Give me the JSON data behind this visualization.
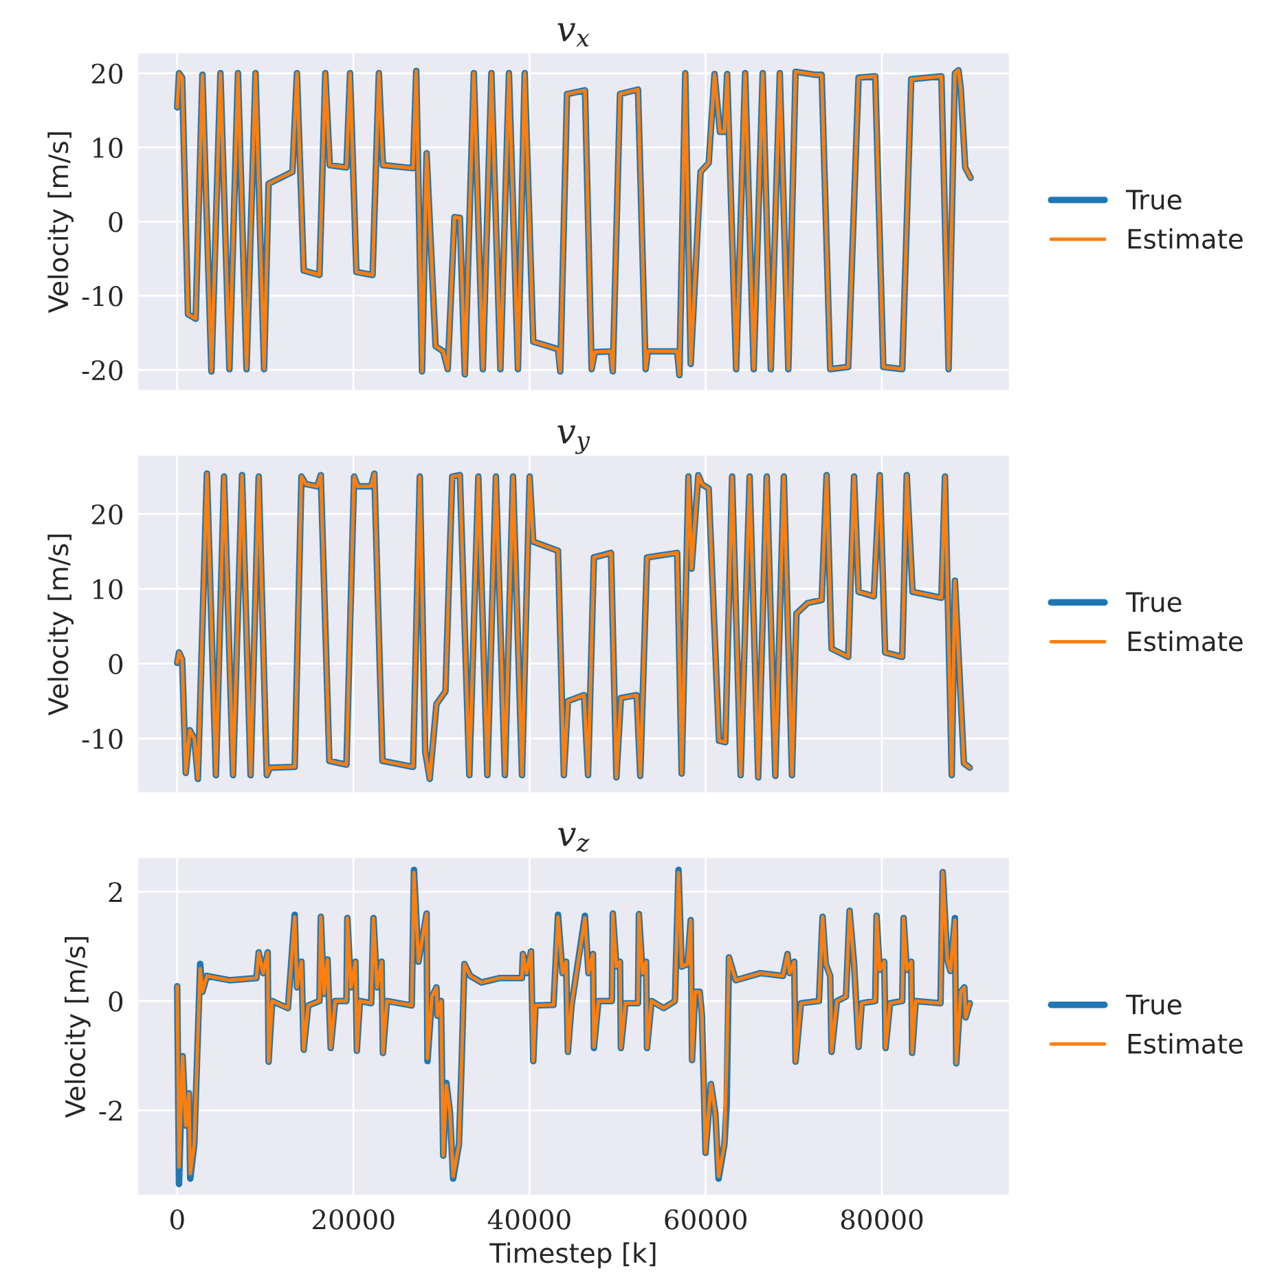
{
  "chart_data": [
    {
      "type": "line",
      "title": "v$_{x}$",
      "ylabel": "Velocity [m/s]",
      "xlim": [
        -4500,
        94500
      ],
      "xticks": [
        0,
        20000,
        40000,
        60000,
        80000
      ],
      "ylim": [
        -22.8,
        22.8
      ],
      "yticks": [
        -20,
        -10,
        0,
        10,
        20
      ],
      "tick_labels": "y",
      "grid": true,
      "legend": "right",
      "x": [
        0,
        206,
        563,
        1228,
        2097,
        2863,
        3885,
        4907,
        5929,
        6900,
        7871,
        8893,
        9864,
        10375,
        13083,
        13594,
        14361,
        16149,
        16813,
        17324,
        19215,
        19624,
        20340,
        22180,
        22894,
        23354,
        26778,
        27136,
        27800,
        28311,
        29333,
        30202,
        30713,
        31479,
        32092,
        32654,
        33676,
        34698,
        35669,
        36691,
        37662,
        38684,
        39451,
        40422,
        43232,
        43488,
        44254,
        46298,
        47052,
        47409,
        49249,
        49453,
        50271,
        52315,
        53184,
        53439,
        56761,
        57016,
        57680,
        58294,
        59418,
        60338,
        61002,
        61615,
        62126,
        62433,
        63455,
        64477,
        65448,
        66470,
        67389,
        68411,
        69382,
        70200,
        72346,
        73164,
        74135,
        76179,
        77354,
        79245,
        80164,
        82311,
        83333,
        86756,
        87574,
        88289,
        88698,
        88954,
        89464,
        90078
      ],
      "series": [
        {
          "name": "True",
          "color": "#1f77b4",
          "values": [
            15.4,
            20.0,
            19.4,
            -12.5,
            -13.1,
            19.8,
            -20.2,
            20.0,
            -19.9,
            20.0,
            -19.9,
            20.0,
            -19.9,
            5.1,
            6.7,
            20.0,
            -6.6,
            -7.2,
            20.0,
            7.6,
            7.3,
            20.0,
            -6.8,
            -7.2,
            20.0,
            7.6,
            7.2,
            20.3,
            -20.2,
            9.2,
            -16.8,
            -17.5,
            -19.9,
            0.6,
            0.5,
            -20.6,
            20.0,
            -19.9,
            20.0,
            -19.9,
            20.0,
            -19.9,
            20.0,
            -16.2,
            -17.2,
            -20.2,
            17.2,
            17.7,
            -19.9,
            -17.6,
            -17.5,
            -20.2,
            17.2,
            17.8,
            -19.9,
            -17.5,
            -17.5,
            -20.7,
            20.0,
            -19.2,
            6.7,
            7.9,
            19.9,
            12.1,
            12.1,
            19.9,
            -19.9,
            20.0,
            -19.9,
            20.0,
            -19.9,
            20.0,
            -19.9,
            20.2,
            19.8,
            19.8,
            -19.9,
            -19.6,
            19.4,
            19.6,
            -19.6,
            -19.9,
            19.2,
            19.6,
            -19.9,
            20.0,
            20.4,
            18.0,
            7.3,
            5.9
          ]
        },
        {
          "name": "Estimate",
          "color": "#ff7f0e",
          "values": [
            15.4,
            20.0,
            19.4,
            -12.5,
            -13.1,
            19.8,
            -20.2,
            20.0,
            -19.9,
            20.0,
            -19.9,
            20.0,
            -19.9,
            5.1,
            6.7,
            20.0,
            -6.6,
            -7.2,
            20.0,
            7.6,
            7.3,
            20.0,
            -6.8,
            -7.2,
            20.0,
            7.6,
            7.2,
            20.3,
            -20.2,
            9.2,
            -16.8,
            -17.5,
            -19.9,
            0.6,
            0.5,
            -20.6,
            20.0,
            -19.9,
            20.0,
            -19.9,
            20.0,
            -19.9,
            20.0,
            -16.2,
            -17.2,
            -20.2,
            17.2,
            17.7,
            -19.9,
            -17.6,
            -17.5,
            -20.2,
            17.2,
            17.8,
            -19.9,
            -17.5,
            -17.5,
            -20.7,
            20.0,
            -19.2,
            6.7,
            7.9,
            19.9,
            12.1,
            12.1,
            19.9,
            -19.9,
            20.0,
            -19.9,
            20.0,
            -19.9,
            20.0,
            -19.9,
            20.2,
            19.8,
            19.8,
            -19.9,
            -19.6,
            19.4,
            19.6,
            -19.6,
            -19.9,
            19.2,
            19.6,
            -19.9,
            20.0,
            20.4,
            18.0,
            7.3,
            5.9
          ]
        }
      ]
    },
    {
      "type": "line",
      "title": "v$_{y}$",
      "ylabel": "Velocity [m/s]",
      "xlim": [
        -4500,
        94500
      ],
      "xticks": [
        0,
        20000,
        40000,
        60000,
        80000
      ],
      "ylim": [
        -17.3,
        27.9
      ],
      "yticks": [
        -10,
        0,
        10,
        20
      ],
      "tick_labels": "y",
      "grid": true,
      "legend": "right",
      "x": [
        0,
        206,
        563,
        972,
        1432,
        1943,
        2352,
        3374,
        4396,
        5316,
        6338,
        7360,
        8331,
        9251,
        10170,
        10528,
        13339,
        14105,
        14616,
        15894,
        16302,
        17273,
        19215,
        20084,
        20493,
        22026,
        22383,
        23303,
        26778,
        27544,
        28158,
        28669,
        29435,
        30457,
        31224,
        32092,
        33165,
        34187,
        35209,
        36180,
        37202,
        38122,
        39144,
        40013,
        40422,
        43232,
        43897,
        44357,
        46183,
        46643,
        47307,
        49249,
        49862,
        50373,
        52162,
        52570,
        53337,
        56761,
        57272,
        58038,
        58396,
        59162,
        59571,
        60338,
        61513,
        62228,
        62995,
        63966,
        64988,
        65959,
        66930,
        67900,
        68871,
        69791,
        70302,
        71580,
        73164,
        73726,
        74288,
        76179,
        76843,
        77354,
        79091,
        79756,
        80369,
        82311,
        82822,
        83486,
        86756,
        87165,
        87932,
        88289,
        89311,
        89975
      ],
      "series": [
        {
          "name": "True",
          "color": "#1f77b4",
          "values": [
            0.1,
            1.5,
            0.6,
            -14.6,
            -8.9,
            -10.0,
            -15.4,
            25.4,
            -14.9,
            25.0,
            -14.9,
            25.2,
            -14.9,
            25.0,
            -14.9,
            -13.9,
            -13.8,
            25.0,
            24.0,
            23.7,
            25.2,
            -13.0,
            -13.5,
            25.0,
            23.7,
            23.7,
            25.4,
            -13.0,
            -13.8,
            25.0,
            -11.8,
            -15.4,
            -5.4,
            -3.7,
            25.0,
            25.2,
            -14.9,
            25.0,
            -14.9,
            25.0,
            -14.9,
            25.0,
            -14.9,
            25.0,
            16.3,
            15.1,
            -14.9,
            -5.0,
            -4.2,
            -14.9,
            14.2,
            14.8,
            -15.2,
            -4.6,
            -4.2,
            -15.0,
            14.2,
            14.8,
            -14.7,
            25.0,
            12.7,
            25.2,
            24.0,
            23.4,
            -10.3,
            -10.5,
            25.0,
            -14.9,
            25.0,
            -15.2,
            25.0,
            -15.0,
            25.0,
            -14.9,
            6.7,
            8.1,
            8.5,
            25.2,
            2.0,
            0.9,
            25.0,
            9.6,
            9.0,
            25.2,
            1.5,
            0.9,
            25.2,
            9.6,
            8.8,
            25.0,
            -14.9,
            11.1,
            -13.3,
            -13.9
          ]
        },
        {
          "name": "Estimate",
          "color": "#ff7f0e",
          "values": [
            0.1,
            1.5,
            0.6,
            -14.6,
            -8.9,
            -10.0,
            -15.4,
            25.4,
            -14.9,
            25.0,
            -14.9,
            25.2,
            -14.9,
            25.0,
            -14.9,
            -13.9,
            -13.8,
            25.0,
            24.0,
            23.7,
            25.2,
            -13.0,
            -13.5,
            25.0,
            23.7,
            23.7,
            25.4,
            -13.0,
            -13.8,
            25.0,
            -11.8,
            -15.4,
            -5.4,
            -3.7,
            25.0,
            25.2,
            -14.9,
            25.0,
            -14.9,
            25.0,
            -14.9,
            25.0,
            -14.9,
            25.0,
            16.3,
            15.1,
            -14.9,
            -5.0,
            -4.2,
            -14.9,
            14.2,
            14.8,
            -15.2,
            -4.6,
            -4.2,
            -15.0,
            14.2,
            14.8,
            -14.7,
            25.0,
            12.7,
            25.2,
            24.0,
            23.4,
            -10.3,
            -10.5,
            25.0,
            -14.9,
            25.0,
            -15.2,
            25.0,
            -15.0,
            25.0,
            -14.9,
            6.7,
            8.1,
            8.5,
            25.2,
            2.0,
            0.9,
            25.0,
            9.6,
            9.0,
            25.2,
            1.5,
            0.9,
            25.2,
            9.6,
            8.8,
            25.0,
            -14.9,
            11.1,
            -13.3,
            -13.9
          ]
        }
      ]
    },
    {
      "type": "line",
      "title": "v$_{z}$",
      "xlabel": "Timestep [k]",
      "ylabel": "Velocity [m/s]",
      "xlim": [
        -4500,
        94500
      ],
      "xticks": [
        0,
        20000,
        40000,
        60000,
        80000
      ],
      "ylim": [
        -3.56,
        2.63
      ],
      "yticks": [
        -2,
        0,
        2
      ],
      "grid": true,
      "legend": "right",
      "x": [
        0,
        206,
        615,
        972,
        1330,
        1483,
        1943,
        2250,
        2608,
        2863,
        3374,
        5929,
        8995,
        9251,
        9762,
        10273,
        10375,
        10784,
        12572,
        13339,
        13594,
        14105,
        14361,
        14872,
        16149,
        16302,
        16660,
        17068,
        17426,
        17938,
        19215,
        19317,
        19726,
        20237,
        20390,
        20748,
        22026,
        22281,
        22690,
        23201,
        23354,
        23814,
        26625,
        26880,
        27391,
        28311,
        28413,
        28924,
        29435,
        29537,
        29946,
        30202,
        30559,
        30968,
        31326,
        31990,
        32297,
        32603,
        33268,
        34545,
        36589,
        39144,
        39246,
        39655,
        40166,
        40422,
        40677,
        42721,
        43232,
        43743,
        44152,
        44357,
        44765,
        46285,
        46694,
        47205,
        47307,
        47818,
        49351,
        49453,
        49862,
        50271,
        50373,
        50884,
        52315,
        52417,
        52826,
        53235,
        53337,
        53848,
        55228,
        56505,
        56914,
        57272,
        57936,
        58294,
        58447,
        58805,
        59316,
        59571,
        59980,
        60593,
        61104,
        61462,
        62126,
        62382,
        62638,
        63403,
        66214,
        68769,
        69280,
        69536,
        70047,
        70200,
        70813,
        72857,
        73266,
        73624,
        74135,
        74288,
        74901,
        75923,
        76332,
        76843,
        77354,
        77712,
        79245,
        79398,
        79756,
        80267,
        80420,
        80931,
        82311,
        82464,
        82822,
        83333,
        83436,
        83844,
        86654,
        86910,
        87421,
        87779,
        88289,
        88443,
        88954,
        89361,
        89515,
        89975
      ],
      "series": [
        {
          "name": "True",
          "color": "#1f77b4",
          "values": [
            0.27,
            -3.35,
            -1.01,
            -2.28,
            -1.69,
            -3.25,
            -2.62,
            -1.1,
            0.68,
            0.17,
            0.46,
            0.38,
            0.42,
            0.89,
            0.51,
            0.89,
            -1.11,
            0.0,
            -0.13,
            1.58,
            0.25,
            0.72,
            -0.89,
            -0.08,
            0.0,
            1.54,
            0.13,
            0.76,
            -0.86,
            0.0,
            0.0,
            1.52,
            0.25,
            0.72,
            -0.91,
            0.0,
            -0.04,
            1.52,
            0.25,
            0.72,
            -0.95,
            0.0,
            -0.08,
            2.4,
            0.72,
            1.6,
            -1.1,
            0.08,
            0.25,
            -0.27,
            0.0,
            -2.83,
            -1.5,
            -2.03,
            -3.25,
            -2.62,
            -1.1,
            0.68,
            0.46,
            0.34,
            0.42,
            0.42,
            0.86,
            0.51,
            0.91,
            -1.1,
            -0.08,
            -0.07,
            1.58,
            0.51,
            0.72,
            -0.93,
            -0.08,
            1.56,
            0.51,
            0.86,
            -0.86,
            0.0,
            0.0,
            1.6,
            0.63,
            0.72,
            -0.86,
            -0.04,
            -0.04,
            1.59,
            0.51,
            0.72,
            -0.86,
            0.0,
            -0.13,
            0.0,
            2.4,
            0.63,
            0.68,
            1.48,
            -1.08,
            0.17,
            0.17,
            -0.25,
            -2.78,
            -1.52,
            -2.07,
            -3.25,
            -2.62,
            -1.9,
            0.8,
            0.38,
            0.51,
            0.46,
            0.86,
            0.51,
            0.72,
            -1.11,
            -0.04,
            0.0,
            1.54,
            0.68,
            0.46,
            -0.93,
            0.0,
            0.08,
            1.65,
            0.68,
            -0.84,
            -0.04,
            0.0,
            1.56,
            0.57,
            0.72,
            -0.86,
            -0.04,
            0.0,
            1.52,
            0.57,
            0.72,
            -0.95,
            0.0,
            -0.04,
            2.36,
            0.76,
            0.55,
            1.52,
            -1.14,
            0.17,
            0.25,
            -0.3,
            -0.04
          ]
        },
        {
          "name": "Estimate",
          "color": "#ff7f0e",
          "values": [
            0.27,
            -3.04,
            -1.01,
            -2.28,
            -1.69,
            -3.16,
            -2.62,
            -1.1,
            0.59,
            0.17,
            0.46,
            0.38,
            0.42,
            0.89,
            0.51,
            0.89,
            -1.11,
            0.0,
            -0.13,
            1.54,
            0.25,
            0.72,
            -0.89,
            -0.08,
            0.0,
            1.54,
            0.13,
            0.76,
            -0.86,
            0.0,
            0.0,
            1.52,
            0.25,
            0.72,
            -0.91,
            0.0,
            -0.04,
            1.52,
            0.25,
            0.72,
            -0.95,
            0.0,
            -0.08,
            2.35,
            0.72,
            1.6,
            -1.05,
            0.08,
            0.25,
            -0.27,
            0.0,
            -2.83,
            -1.54,
            -2.03,
            -3.21,
            -2.62,
            -1.1,
            0.68,
            0.46,
            0.34,
            0.42,
            0.42,
            0.86,
            0.51,
            0.91,
            -1.1,
            -0.08,
            -0.07,
            1.54,
            0.51,
            0.72,
            -0.93,
            -0.08,
            1.52,
            0.51,
            0.86,
            -0.84,
            0.0,
            0.0,
            1.6,
            0.63,
            0.72,
            -0.86,
            -0.04,
            -0.04,
            1.59,
            0.51,
            0.72,
            -0.86,
            0.0,
            -0.13,
            0.0,
            2.35,
            0.63,
            0.68,
            1.48,
            -1.08,
            0.17,
            0.17,
            -0.25,
            -2.78,
            -1.52,
            -2.07,
            -3.21,
            -2.62,
            -1.05,
            0.8,
            0.38,
            0.51,
            0.46,
            0.86,
            0.51,
            0.72,
            -1.11,
            -0.04,
            0.0,
            1.54,
            0.68,
            0.46,
            -0.93,
            0.0,
            0.08,
            1.65,
            0.68,
            -0.84,
            -0.04,
            0.0,
            1.56,
            0.57,
            0.72,
            -0.86,
            -0.04,
            0.0,
            1.52,
            0.57,
            0.72,
            -0.95,
            0.0,
            -0.04,
            2.36,
            0.76,
            0.55,
            1.48,
            -1.14,
            0.17,
            0.25,
            -0.3,
            -0.04
          ]
        }
      ]
    }
  ]
}
